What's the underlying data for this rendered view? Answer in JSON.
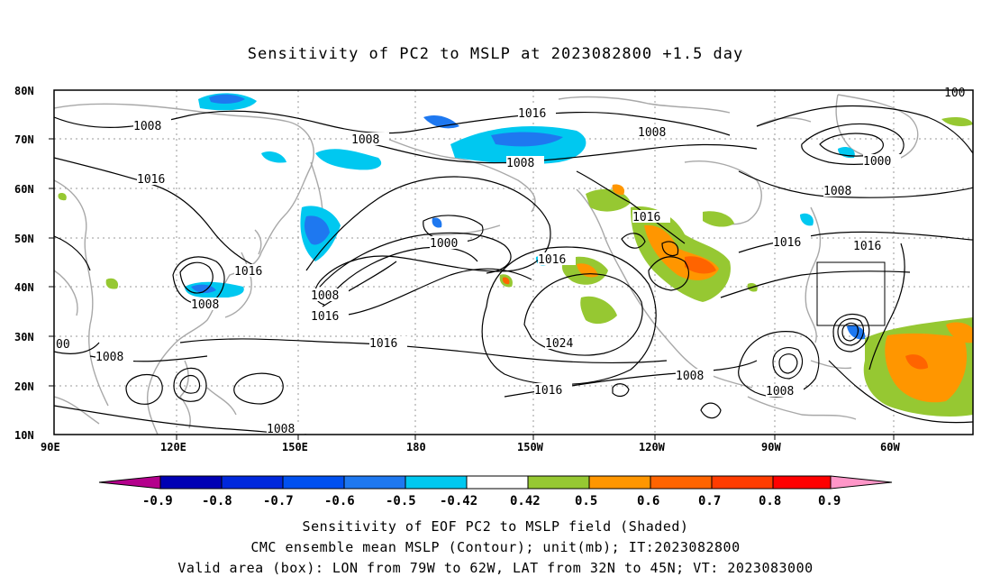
{
  "title": "Sensitivity of PC2 to MSLP at 2023082800 +1.5 day",
  "axes": {
    "x_ticks": [
      "90E",
      "120E",
      "150E",
      "180",
      "150W",
      "120W",
      "90W",
      "60W"
    ],
    "y_ticks": [
      "80N",
      "70N",
      "60N",
      "50N",
      "40N",
      "30N",
      "20N",
      "10N"
    ]
  },
  "contour_labels": [
    "1008",
    "1016",
    "1008",
    "1016",
    "1008",
    "1008",
    "1000",
    "1008",
    "1016",
    "1016",
    "1000",
    "1008",
    "1016",
    "1016",
    "1008",
    "1016",
    "1016",
    "1008",
    "1024",
    "1016",
    "1008",
    "1008",
    "1008",
    "00",
    "1008",
    "1016",
    "100"
  ],
  "colorbar": {
    "labels": [
      "-0.9",
      "-0.8",
      "-0.7",
      "-0.6",
      "-0.5",
      "-0.42",
      "0.42",
      "0.5",
      "0.6",
      "0.7",
      "0.8",
      "0.9"
    ],
    "colors": [
      "#b4008c",
      "#0000b4",
      "#0028dc",
      "#0050f0",
      "#1e78f0",
      "#00c8f0",
      "#ffffff",
      "#96c832",
      "#ff9600",
      "#ff6400",
      "#ff3c00",
      "#ff0000",
      "#ff96c8"
    ]
  },
  "captions": {
    "line1": "Sensitivity of EOF PC2 to MSLP field (Shaded)",
    "line2": "CMC ensemble mean MSLP (Contour); unit(mb); IT:2023082800",
    "line3": "Valid area (box): LON from 79W to 62W, LAT from 32N to 45N; VT: 2023083000"
  }
}
